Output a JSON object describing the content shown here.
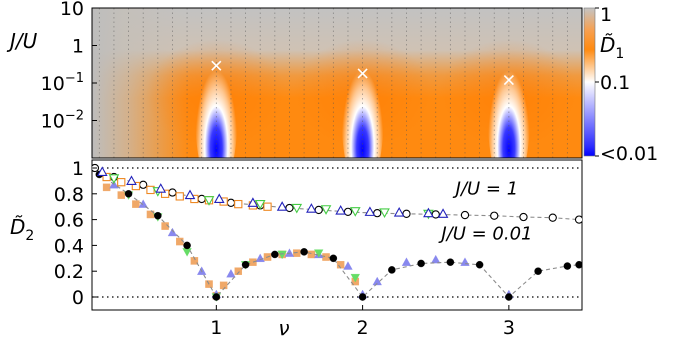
{
  "chart_data": [
    {
      "type": "heatmap",
      "ylabel": "J/U",
      "y_scale": "log",
      "ylim": [
        0.001,
        10
      ],
      "xlim": [
        0.15,
        3.5
      ],
      "yticks": [
        {
          "value": 10,
          "label": "10"
        },
        {
          "value": 1,
          "label": "1"
        },
        {
          "value": 0.1,
          "label": "10",
          "exp": "−1"
        },
        {
          "value": 0.01,
          "label": "10",
          "exp": "−2"
        }
      ],
      "vertical_gridlines": "dotted, every 0.1 in ν",
      "colorbar": {
        "title": "D̃",
        "title_sub": "1",
        "scale": "log",
        "ticks": [
          {
            "value": 1,
            "label": "1"
          },
          {
            "value": 0.1,
            "label": "0.1"
          },
          {
            "value": 0.01,
            "label": "<0.01"
          }
        ],
        "colors": {
          "low": "#0000ff",
          "mid": "#ffffff",
          "high": "#ff8000",
          "top": "#c0c0c0"
        }
      },
      "markers": {
        "symbol": "×",
        "color": "#ffffff",
        "points": [
          {
            "x": 1.0,
            "y": 0.29
          },
          {
            "x": 2.0,
            "y": 0.18
          },
          {
            "x": 3.0,
            "y": 0.12
          }
        ]
      },
      "dips": [
        1,
        2,
        3
      ]
    },
    {
      "type": "scatter",
      "ylabel": "D̃",
      "ylabel_sub": "2",
      "xlabel": "ν",
      "xlim": [
        0.15,
        3.5
      ],
      "ylim": [
        0,
        1
      ],
      "xticks": [
        1,
        2,
        3
      ],
      "yticks": [
        {
          "value": 0,
          "label": "0"
        },
        {
          "value": 0.2,
          "label": "0.2"
        },
        {
          "value": 0.4,
          "label": "0.4"
        },
        {
          "value": 0.6,
          "label": "0.6"
        },
        {
          "value": 0.8,
          "label": "0.8"
        },
        {
          "value": 1,
          "label": "1"
        }
      ],
      "reference_lines": [
        0,
        1
      ],
      "annotations": [
        {
          "text": "J/U = 1",
          "x": 2.85,
          "y": 0.75
        },
        {
          "text": "J/U = 0.01",
          "x": 2.85,
          "y": 0.4
        }
      ],
      "series": [
        {
          "marker": "circle-open",
          "line": "dashed",
          "values": [
            [
              0.17,
              1.0
            ],
            [
              0.3,
              0.93
            ],
            [
              0.5,
              0.87
            ],
            [
              0.7,
              0.81
            ],
            [
              0.9,
              0.76
            ],
            [
              1.1,
              0.73
            ],
            [
              1.3,
              0.71
            ],
            [
              1.5,
              0.69
            ],
            [
              1.7,
              0.675
            ],
            [
              1.9,
              0.66
            ],
            [
              2.1,
              0.65
            ],
            [
              2.3,
              0.645
            ],
            [
              2.5,
              0.64
            ],
            [
              2.7,
              0.635
            ],
            [
              2.9,
              0.63
            ],
            [
              3.1,
              0.62
            ],
            [
              3.3,
              0.615
            ],
            [
              3.48,
              0.6
            ]
          ]
        },
        {
          "marker": "square-open",
          "color": "#ee8822",
          "values": [
            [
              0.25,
              0.93
            ],
            [
              0.35,
              0.89
            ],
            [
              0.45,
              0.86
            ],
            [
              0.55,
              0.83
            ],
            [
              0.65,
              0.8
            ],
            [
              0.75,
              0.78
            ],
            [
              0.85,
              0.76
            ],
            [
              0.95,
              0.75
            ],
            [
              1.05,
              0.74
            ],
            [
              1.15,
              0.72
            ],
            [
              1.25,
              0.71
            ],
            [
              1.35,
              0.7
            ]
          ]
        },
        {
          "marker": "triangle-down-open",
          "color": "#44cc44",
          "values": [
            [
              0.3,
              0.92
            ],
            [
              0.6,
              0.82
            ],
            [
              0.95,
              0.75
            ],
            [
              1.3,
              0.72
            ],
            [
              1.55,
              0.69
            ],
            [
              1.75,
              0.68
            ],
            [
              1.95,
              0.665
            ],
            [
              2.15,
              0.655
            ],
            [
              2.45,
              0.645
            ]
          ]
        },
        {
          "marker": "triangle-up-open",
          "color": "#2222bb",
          "values": [
            [
              0.22,
              0.97
            ],
            [
              0.42,
              0.9
            ],
            [
              0.62,
              0.84
            ],
            [
              0.82,
              0.79
            ],
            [
              1.02,
              0.76
            ],
            [
              1.25,
              0.73
            ],
            [
              1.45,
              0.7
            ],
            [
              1.65,
              0.685
            ],
            [
              1.85,
              0.67
            ],
            [
              2.05,
              0.66
            ],
            [
              2.25,
              0.655
            ],
            [
              2.45,
              0.65
            ],
            [
              2.55,
              0.645
            ]
          ]
        },
        {
          "marker": "circle-filled",
          "line": "dashed",
          "color": "#000000",
          "values": [
            [
              0.2,
              0.95
            ],
            [
              0.4,
              0.8
            ],
            [
              0.6,
              0.63
            ],
            [
              0.8,
              0.4
            ],
            [
              1.0,
              0.0
            ],
            [
              1.2,
              0.25
            ],
            [
              1.4,
              0.33
            ],
            [
              1.6,
              0.35
            ],
            [
              1.8,
              0.3
            ],
            [
              2.0,
              0.0
            ],
            [
              2.2,
              0.21
            ],
            [
              2.4,
              0.26
            ],
            [
              2.6,
              0.27
            ],
            [
              2.8,
              0.25
            ],
            [
              3.0,
              0.0
            ],
            [
              3.2,
              0.2
            ],
            [
              3.4,
              0.24
            ],
            [
              3.48,
              0.25
            ]
          ]
        },
        {
          "marker": "square-filled",
          "color": "#f0a868",
          "values": [
            [
              0.25,
              0.85
            ],
            [
              0.35,
              0.79
            ],
            [
              0.45,
              0.72
            ],
            [
              0.55,
              0.64
            ],
            [
              0.65,
              0.55
            ],
            [
              0.75,
              0.43
            ],
            [
              0.85,
              0.28
            ],
            [
              0.95,
              0.1
            ],
            [
              1.0,
              0.01
            ],
            [
              1.05,
              0.09
            ],
            [
              1.15,
              0.2
            ],
            [
              1.25,
              0.27
            ],
            [
              1.35,
              0.31
            ],
            [
              1.45,
              0.33
            ],
            [
              1.55,
              0.34
            ],
            [
              1.65,
              0.33
            ],
            [
              1.75,
              0.31
            ],
            [
              1.85,
              0.25
            ],
            [
              1.95,
              0.12
            ]
          ]
        },
        {
          "marker": "triangle-up-filled",
          "color": "#8888ee",
          "values": [
            [
              0.3,
              0.87
            ],
            [
              0.5,
              0.72
            ],
            [
              0.7,
              0.5
            ],
            [
              0.9,
              0.2
            ],
            [
              1.0,
              0.02
            ],
            [
              1.1,
              0.18
            ],
            [
              1.3,
              0.3
            ],
            [
              1.5,
              0.34
            ],
            [
              1.7,
              0.33
            ],
            [
              1.9,
              0.24
            ],
            [
              2.0,
              0.02
            ],
            [
              2.1,
              0.12
            ],
            [
              2.3,
              0.27
            ],
            [
              2.5,
              0.29
            ],
            [
              2.7,
              0.27
            ],
            [
              3.0,
              0.02
            ]
          ]
        },
        {
          "marker": "triangle-down-filled",
          "color": "#66dd66",
          "values": [
            [
              0.4,
              0.79
            ],
            [
              0.6,
              0.62
            ],
            [
              0.8,
              0.35
            ],
            [
              1.0,
              0.0
            ],
            [
              1.2,
              0.25
            ],
            [
              1.45,
              0.33
            ],
            [
              1.7,
              0.34
            ],
            [
              1.95,
              0.15
            ]
          ]
        }
      ]
    }
  ]
}
